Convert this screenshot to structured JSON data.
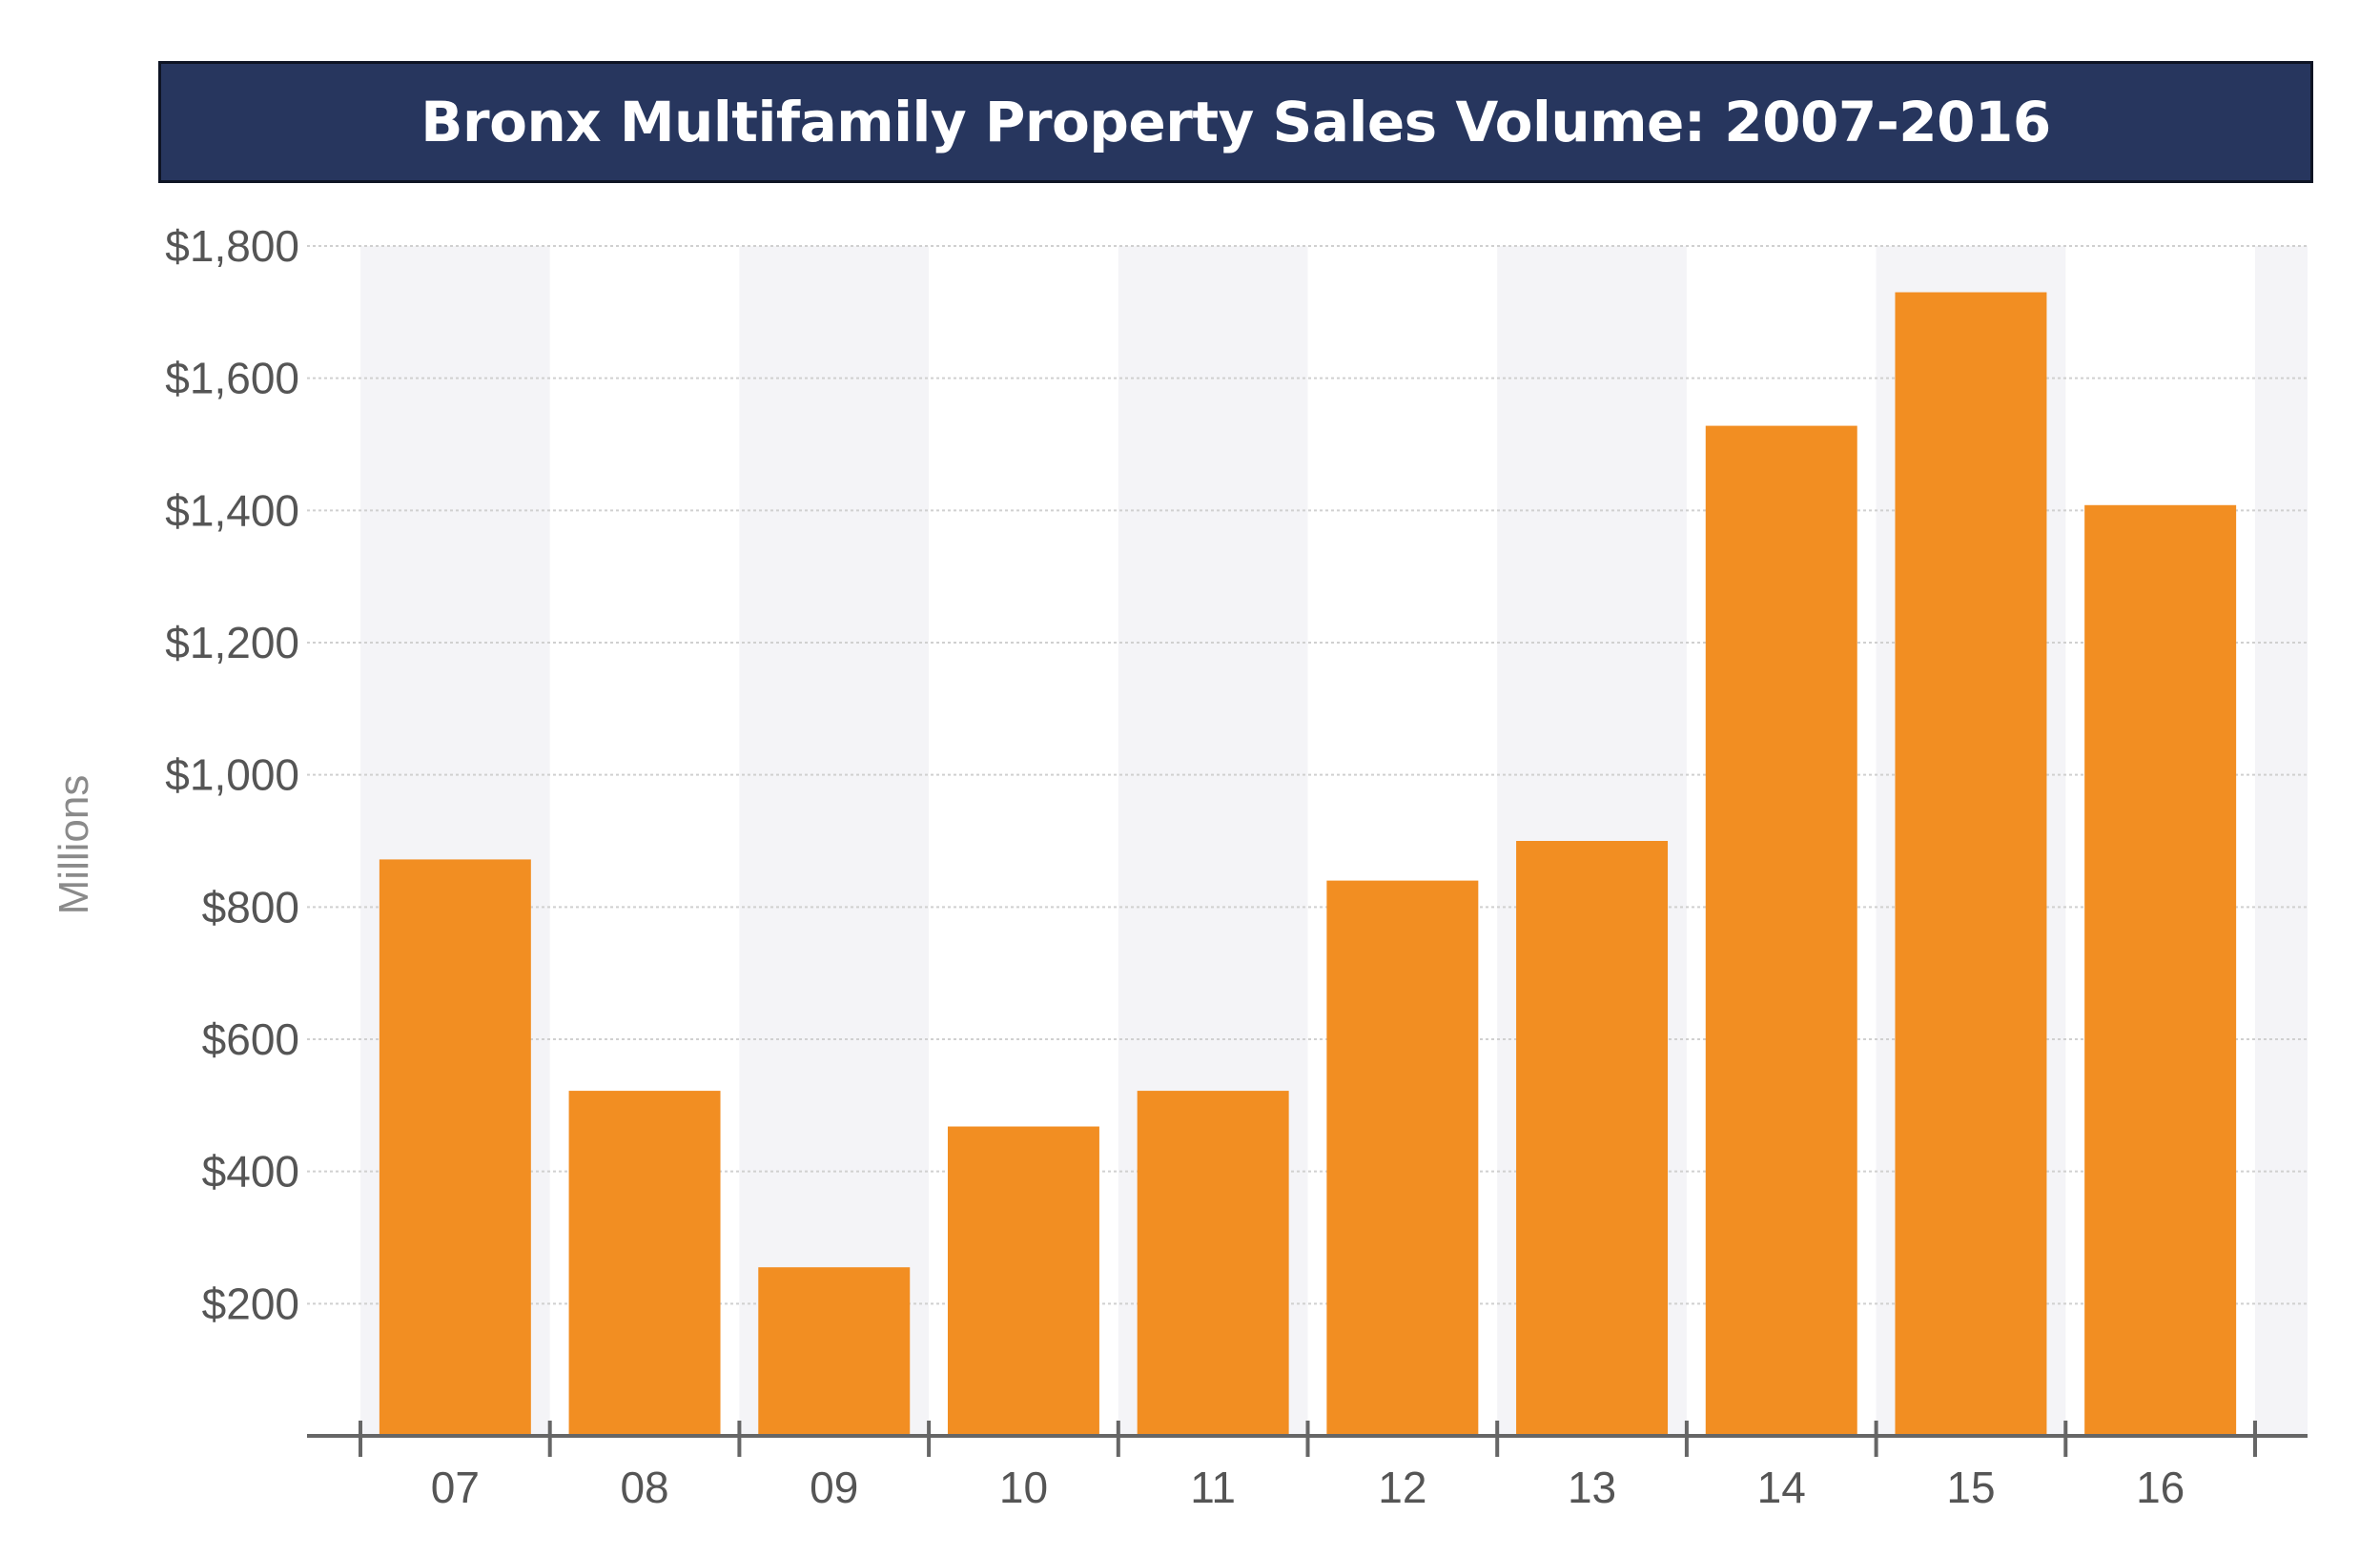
{
  "colors": {
    "banner": "#27365e",
    "bar": "#f28e22",
    "band": "#f4f4f7",
    "axis": "#666666",
    "grid": "#d0d0d0"
  },
  "chart_data": {
    "type": "bar",
    "title": "Bronx Multifamily Property Sales Volume: 2007-2016",
    "ylabel": "Millions",
    "xlabel": "",
    "categories": [
      "07",
      "08",
      "09",
      "10",
      "11",
      "12",
      "13",
      "14",
      "15",
      "16"
    ],
    "values": [
      872,
      522,
      255,
      468,
      522,
      840,
      900,
      1528,
      1730,
      1408
    ],
    "ylim": [
      0,
      1800
    ],
    "yticks": [
      200,
      400,
      600,
      800,
      1000,
      1200,
      1400,
      1600,
      1800
    ],
    "ytick_labels": [
      "$200",
      "$400",
      "$600",
      "$800",
      "$1,000",
      "$1,200",
      "$1,400",
      "$1,600",
      "$1,800"
    ],
    "grid": true,
    "alternating_bands": true,
    "legend": "none"
  }
}
